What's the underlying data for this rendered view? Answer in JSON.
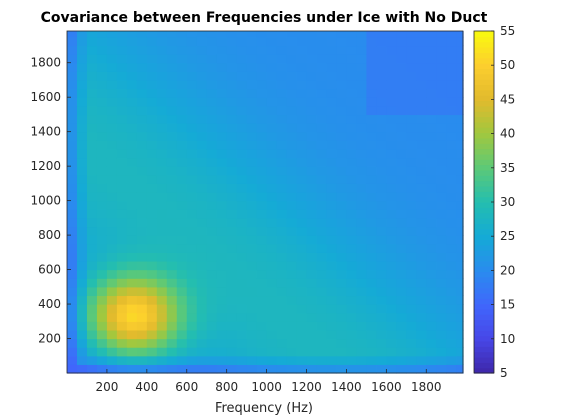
{
  "chart_data": {
    "type": "heatmap",
    "title": "Covariance between Frequencies under Ice with No Duct",
    "xlabel": "Frequency (Hz)",
    "ylabel": "",
    "xlim": [
      0,
      1984
    ],
    "ylim": [
      0,
      1984
    ],
    "grid_step": 50,
    "x_ticks": [
      200,
      400,
      600,
      800,
      1000,
      1200,
      1400,
      1600,
      1800
    ],
    "y_ticks": [
      200,
      400,
      600,
      800,
      1000,
      1200,
      1400,
      1600,
      1800
    ],
    "colorbar": {
      "colormap": "parula",
      "clim": [
        5,
        55
      ],
      "ticks": [
        5,
        10,
        15,
        20,
        25,
        30,
        35,
        40,
        45,
        50,
        55
      ]
    },
    "peak": {
      "x": 330,
      "y": 330,
      "value": 55
    },
    "description_values": {
      "edge_row_x_low": 15,
      "background_high_freq": 22,
      "diagonal_ridge_at_1000": 32
    }
  }
}
